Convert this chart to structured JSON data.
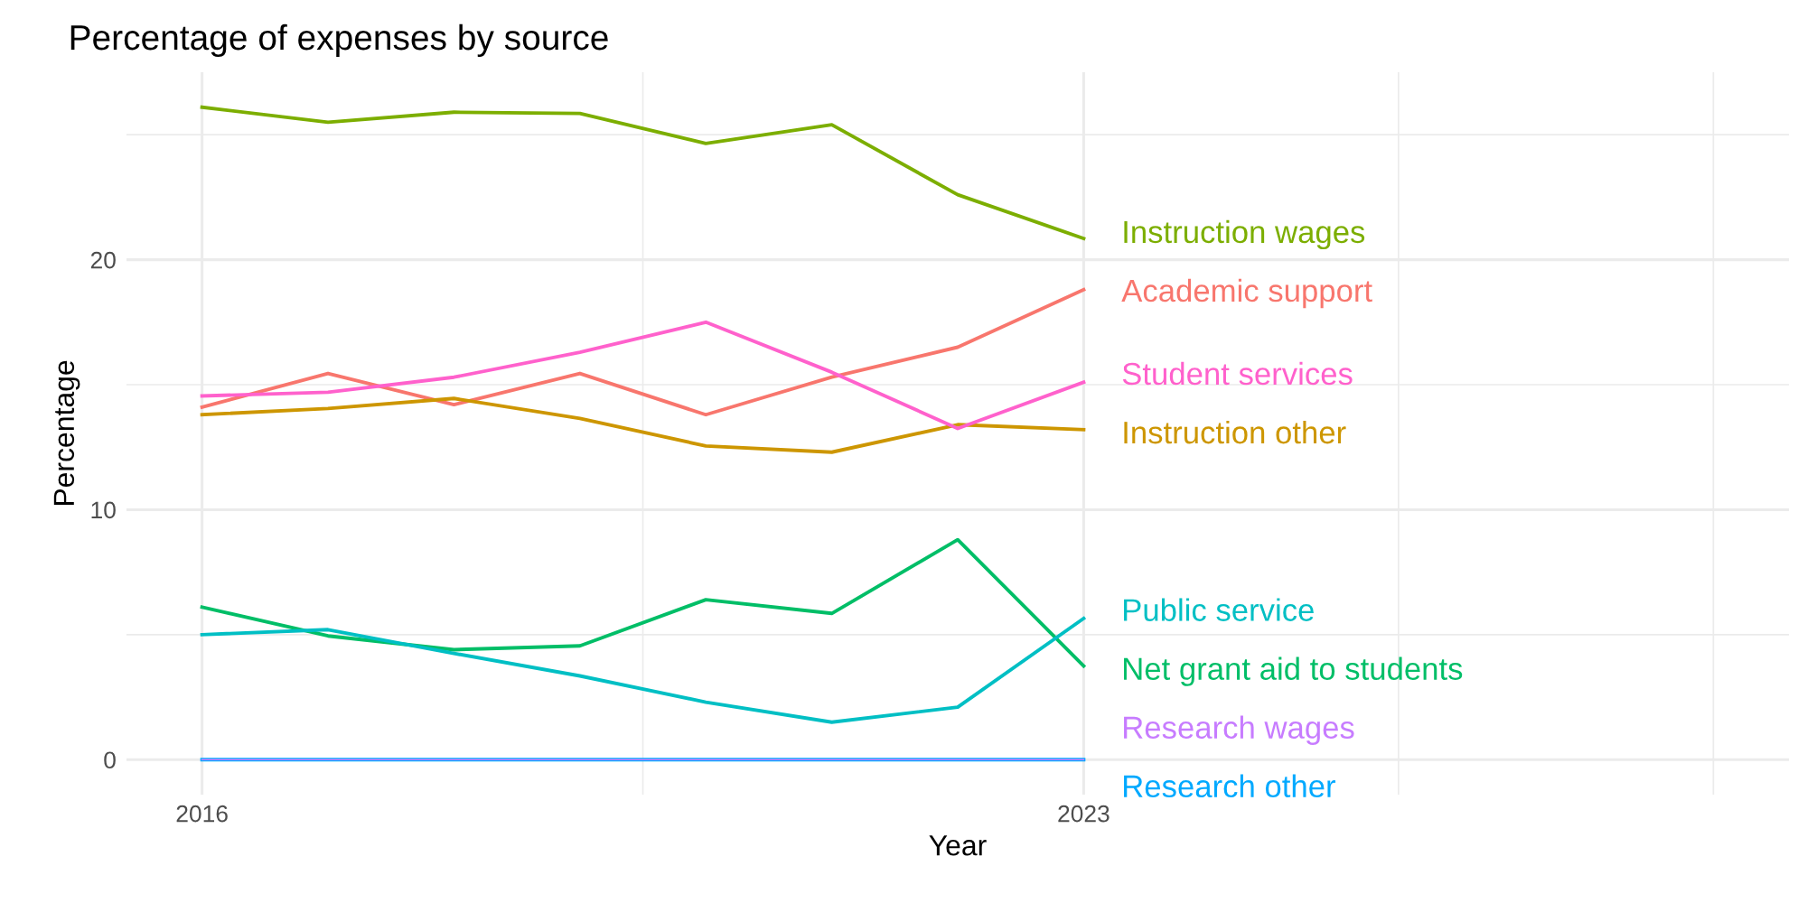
{
  "chart_data": {
    "type": "line",
    "title": "Percentage of expenses by source",
    "xlabel": "Year",
    "ylabel": "Percentage",
    "x": [
      2016,
      2017,
      2018,
      2019,
      2020,
      2021,
      2022,
      2023
    ],
    "series": [
      {
        "name": "Academic support",
        "color": "#f8766d",
        "values": [
          14.1,
          15.45,
          14.2,
          15.45,
          13.8,
          15.3,
          16.5,
          18.8
        ]
      },
      {
        "name": "Instruction other",
        "color": "#cd9600",
        "values": [
          13.8,
          14.05,
          14.45,
          13.65,
          12.55,
          12.3,
          13.4,
          13.2
        ]
      },
      {
        "name": "Instruction wages",
        "color": "#7cae00",
        "values": [
          26.1,
          25.5,
          25.9,
          25.85,
          24.65,
          25.4,
          22.6,
          20.85
        ]
      },
      {
        "name": "Net grant aid to students",
        "color": "#00be67",
        "values": [
          6.1,
          4.95,
          4.4,
          4.55,
          6.4,
          5.85,
          8.8,
          3.75
        ]
      },
      {
        "name": "Public service",
        "color": "#00bfc4",
        "values": [
          5.0,
          5.2,
          4.25,
          3.35,
          2.3,
          1.5,
          2.1,
          5.65
        ]
      },
      {
        "name": "Research other",
        "color": "#00a9ff",
        "values": [
          0,
          0,
          0,
          0,
          0,
          0,
          0,
          0
        ]
      },
      {
        "name": "Research wages",
        "color": "#c77cff",
        "values": [
          0,
          0,
          0,
          0,
          0,
          0,
          0,
          0
        ]
      },
      {
        "name": "Student services",
        "color": "#ff61cc",
        "values": [
          14.55,
          14.7,
          15.3,
          16.3,
          17.5,
          15.5,
          13.25,
          15.1
        ]
      }
    ],
    "xlim": [
      2015.4,
      2028.6
    ],
    "xticks": [
      2016,
      {
        "value": 2019.5,
        "label": null
      },
      2023,
      {
        "value": 2025.5,
        "label": null
      },
      {
        "value": 2028,
        "label": null
      }
    ],
    "ylim": [
      -1.4,
      27.5
    ],
    "yticks": [
      0,
      {
        "value": 5,
        "label": null
      },
      10,
      {
        "value": 15,
        "label": null
      },
      20,
      {
        "value": 25,
        "label": null
      }
    ],
    "grid": true,
    "legend": false,
    "line_style": "solid",
    "marker": "none"
  }
}
